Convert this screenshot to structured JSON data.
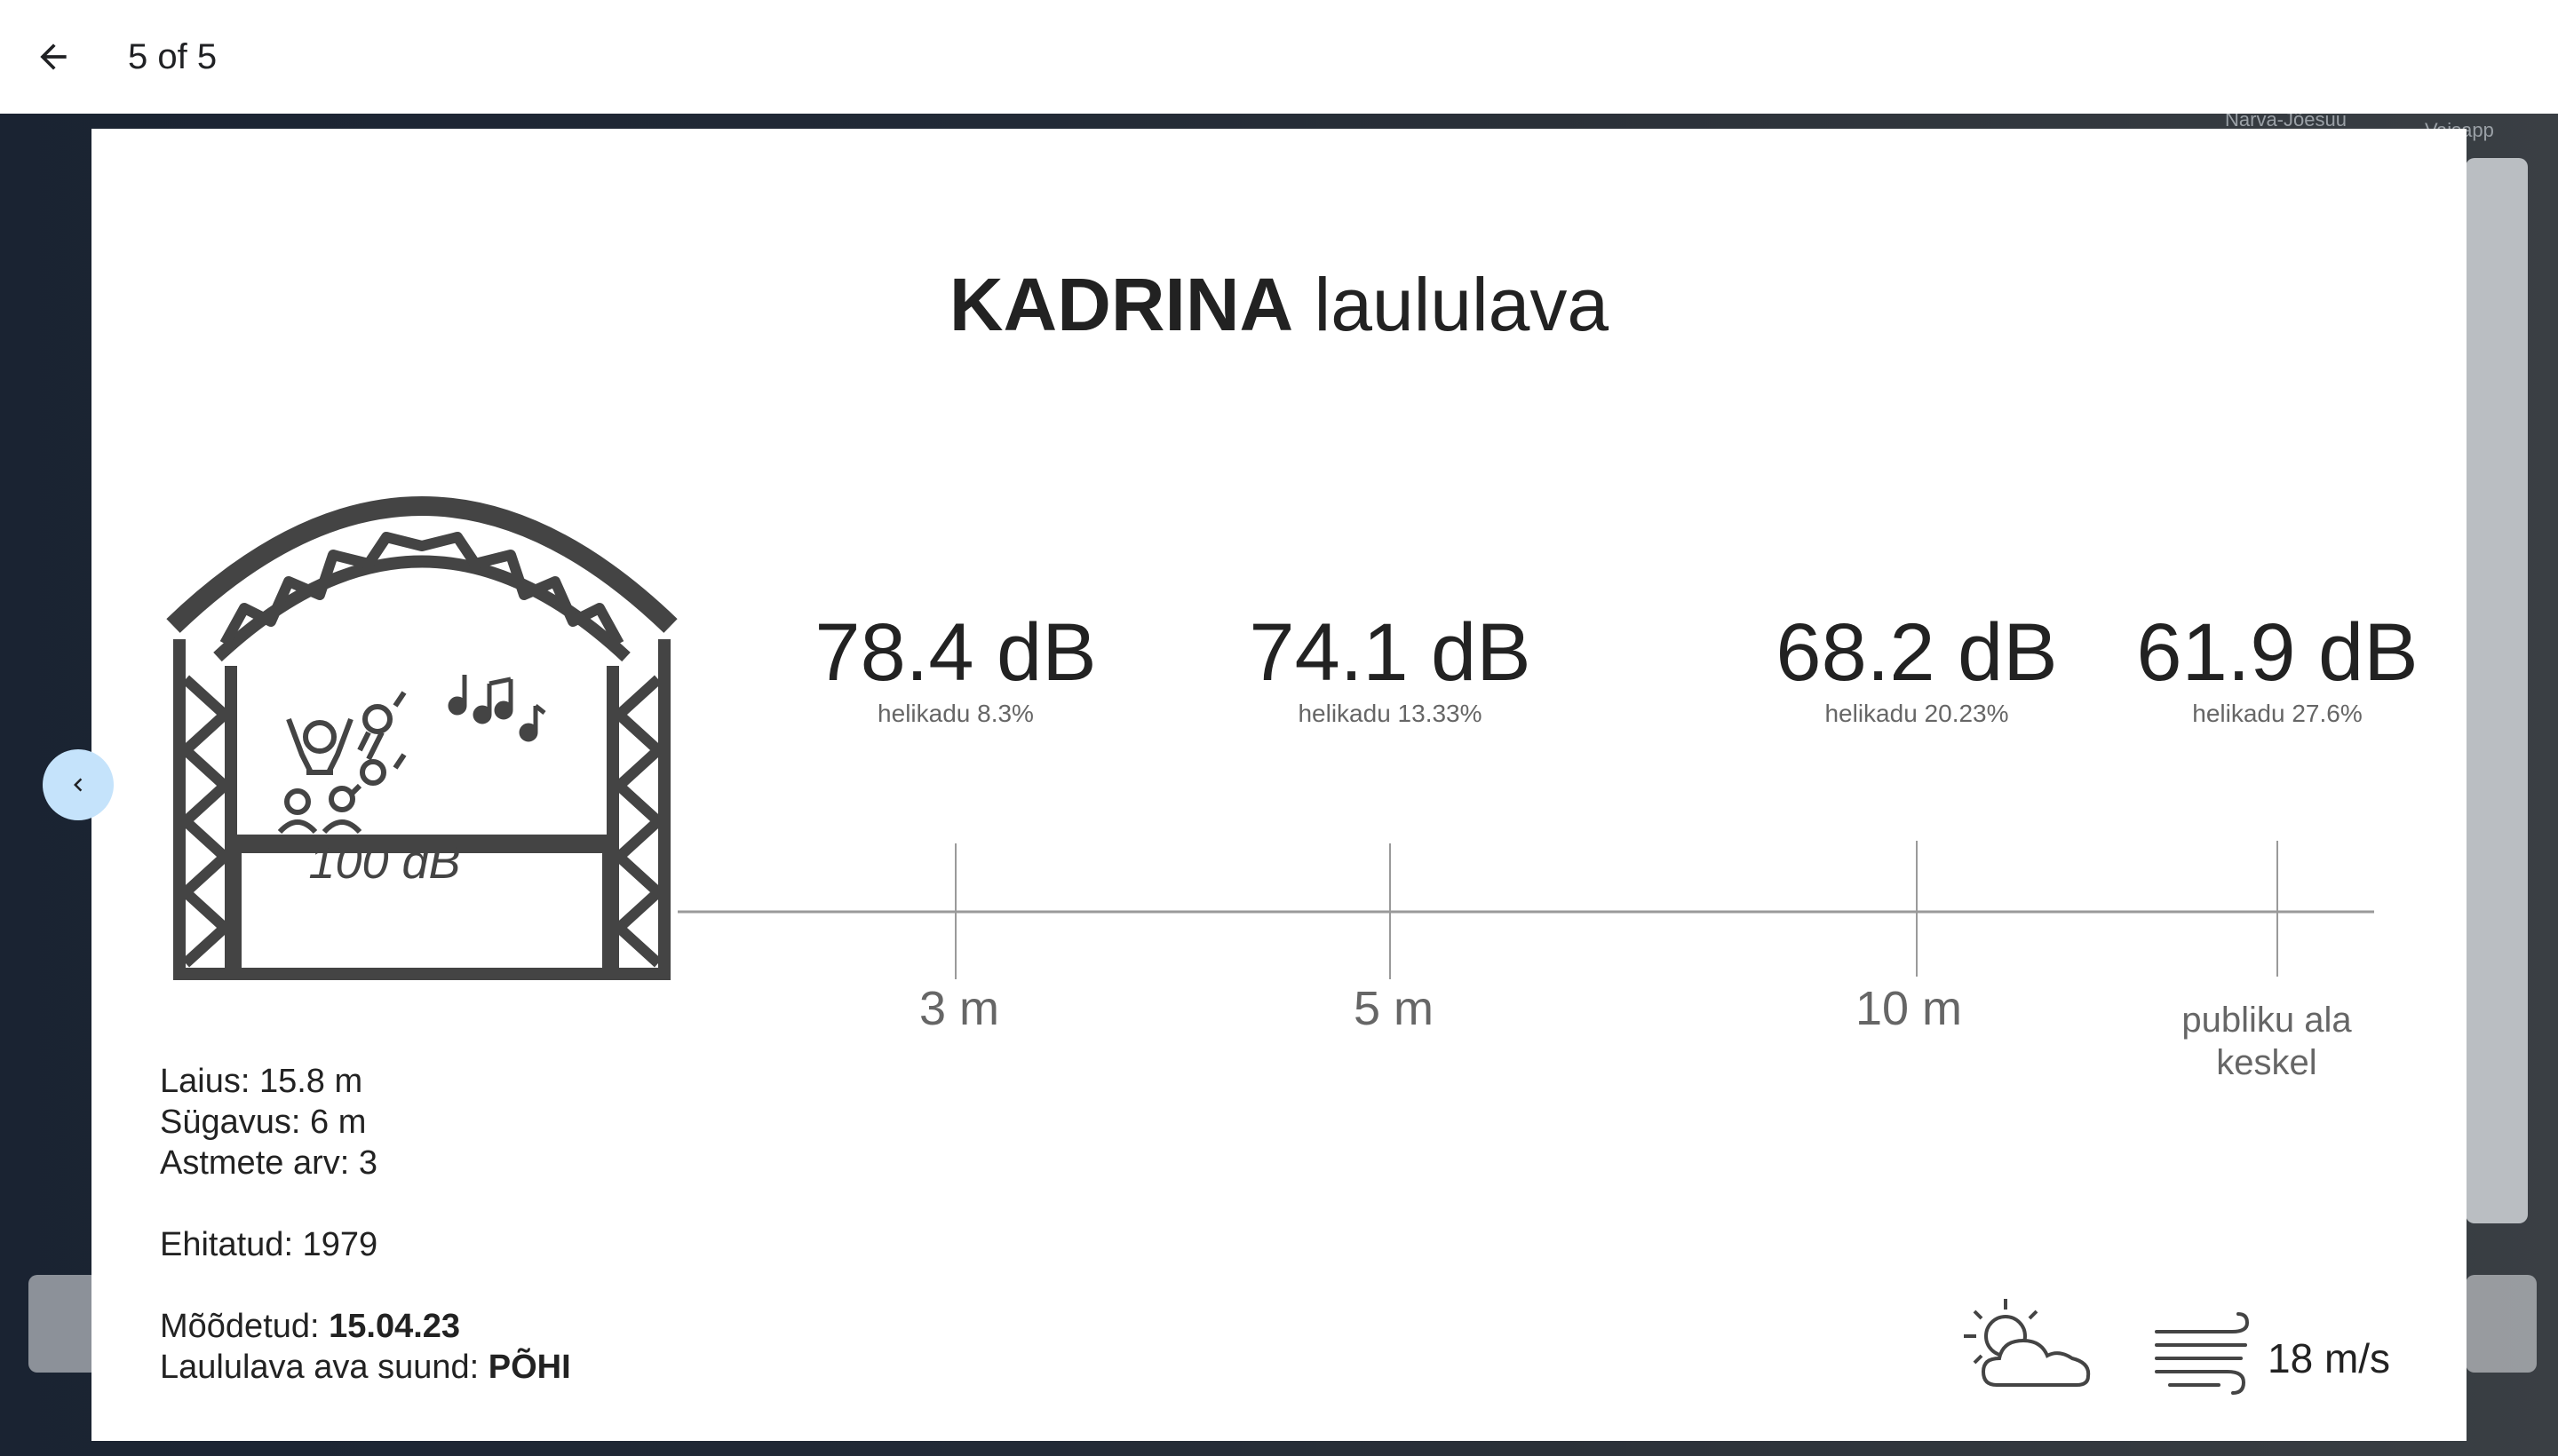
{
  "header": {
    "back_label": "Back",
    "page_counter": "5 of 5"
  },
  "map_background": {
    "label_top_right_1": "Narva-Jõesuu",
    "label_top_right_2": "Vaisapp"
  },
  "slide": {
    "title_bold": "KADRINA",
    "title_rest": " laululava",
    "stage_db": "100 dB",
    "measurements": [
      {
        "value": "78.4 dB",
        "sub": "helikadu 8.3%",
        "distance": "3 m"
      },
      {
        "value": "74.1 dB",
        "sub": "helikadu 13.33%",
        "distance": "5 m"
      },
      {
        "value": "68.2 dB",
        "sub": "helikadu 20.23%",
        "distance": "10 m"
      },
      {
        "value": "61.9 dB",
        "sub": "helikadu 27.6%",
        "distance_line1": "publiku ala",
        "distance_line2": "keskel"
      }
    ],
    "info": {
      "laius": "Laius: 15.8 m",
      "sugavus": "Sügavus: 6 m",
      "astmete": "Astmete arv: 3",
      "ehitatud": "Ehitatud: 1979",
      "moodetud_label": "Mõõdetud: ",
      "moodetud_value": "15.04.23",
      "suund_label": "Laululava ava suund: ",
      "suund_value": "PÕHI"
    },
    "weather_icon": "partly-cloudy-icon",
    "wind_icon": "wind-icon",
    "wind_value": "18 m/s"
  },
  "colors": {
    "accent_prev_button": "#c5e3fb",
    "text_dark": "#222222",
    "text_muted": "#666666"
  }
}
